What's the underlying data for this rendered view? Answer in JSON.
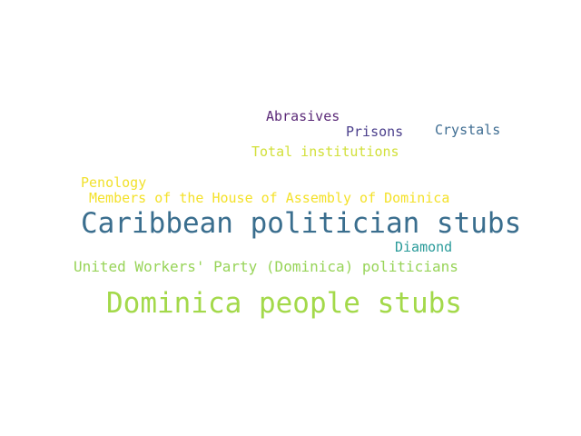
{
  "words": [
    {
      "text": "Abrasives",
      "color": "#5b2a78"
    },
    {
      "text": "Prisons",
      "color": "#4b3f8c"
    },
    {
      "text": "Crystals",
      "color": "#3f6d92"
    },
    {
      "text": "Total institutions",
      "color": "#d2e03a"
    },
    {
      "text": "Penology",
      "color": "#f1e12d"
    },
    {
      "text": "Members of the House of Assembly of Dominica",
      "color": "#f4e12a"
    },
    {
      "text": "Caribbean politician stubs",
      "color": "#3a6e8e"
    },
    {
      "text": "Diamond",
      "color": "#2a9b9a"
    },
    {
      "text": "United Workers' Party (Dominica) politicians",
      "color": "#98d459"
    },
    {
      "text": "Dominica people stubs",
      "color": "#a3d94a"
    }
  ]
}
